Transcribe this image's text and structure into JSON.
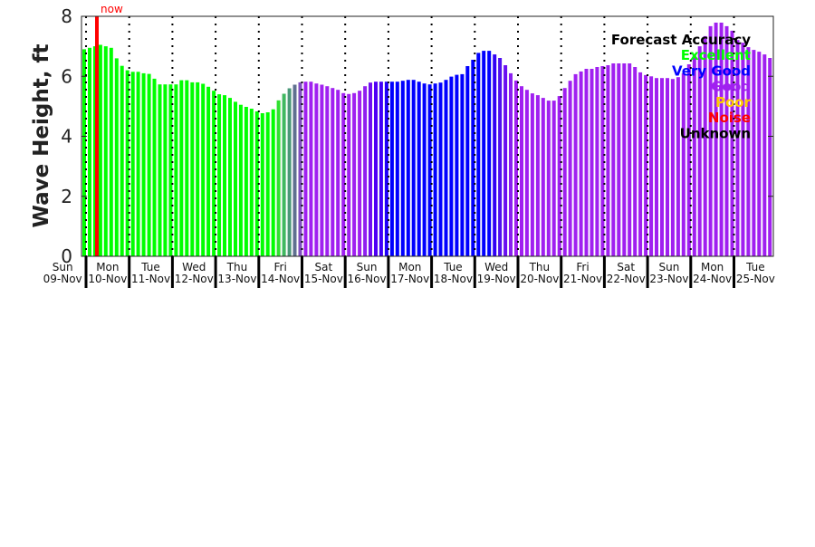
{
  "chart_data": {
    "type": "bar",
    "title": "",
    "ylabel": "Wave Height, ft",
    "xlabel": "",
    "ylim": [
      0,
      8
    ],
    "yticks": [
      0,
      2,
      4,
      6,
      8
    ],
    "interval_hours": 3,
    "now_label": "now",
    "now_color": "#ff0000",
    "days": [
      {
        "dow": "Sun",
        "date": "09-Nov"
      },
      {
        "dow": "Mon",
        "date": "10-Nov"
      },
      {
        "dow": "Tue",
        "date": "11-Nov"
      },
      {
        "dow": "Wed",
        "date": "12-Nov"
      },
      {
        "dow": "Thu",
        "date": "13-Nov"
      },
      {
        "dow": "Fri",
        "date": "14-Nov"
      },
      {
        "dow": "Sat",
        "date": "15-Nov"
      },
      {
        "dow": "Sun",
        "date": "16-Nov"
      },
      {
        "dow": "Mon",
        "date": "17-Nov"
      },
      {
        "dow": "Tue",
        "date": "18-Nov"
      },
      {
        "dow": "Wed",
        "date": "19-Nov"
      },
      {
        "dow": "Thu",
        "date": "20-Nov"
      },
      {
        "dow": "Fri",
        "date": "21-Nov"
      },
      {
        "dow": "Sat",
        "date": "22-Nov"
      },
      {
        "dow": "Sun",
        "date": "23-Nov"
      },
      {
        "dow": "Mon",
        "date": "24-Nov"
      },
      {
        "dow": "Tue",
        "date": "25-Nov"
      }
    ],
    "values": [
      6.9,
      6.95,
      7.0,
      7.05,
      7.0,
      6.95,
      6.6,
      6.35,
      6.2,
      6.15,
      6.15,
      6.1,
      6.08,
      5.92,
      5.73,
      5.73,
      5.73,
      5.73,
      5.87,
      5.87,
      5.8,
      5.8,
      5.75,
      5.65,
      5.52,
      5.4,
      5.37,
      5.28,
      5.15,
      5.05,
      4.98,
      4.92,
      4.83,
      4.77,
      4.8,
      4.9,
      5.2,
      5.42,
      5.6,
      5.72,
      5.8,
      5.82,
      5.82,
      5.76,
      5.72,
      5.67,
      5.61,
      5.55,
      5.44,
      5.41,
      5.44,
      5.52,
      5.67,
      5.79,
      5.82,
      5.82,
      5.82,
      5.82,
      5.82,
      5.85,
      5.88,
      5.88,
      5.82,
      5.76,
      5.73,
      5.76,
      5.79,
      5.88,
      5.99,
      6.05,
      6.07,
      6.34,
      6.55,
      6.78,
      6.85,
      6.85,
      6.73,
      6.61,
      6.37,
      6.1,
      5.86,
      5.67,
      5.55,
      5.43,
      5.37,
      5.28,
      5.19,
      5.19,
      5.34,
      5.61,
      5.85,
      6.07,
      6.16,
      6.25,
      6.25,
      6.31,
      6.34,
      6.37,
      6.43,
      6.43,
      6.43,
      6.43,
      6.31,
      6.13,
      6.04,
      6.0,
      5.94,
      5.94,
      5.94,
      5.91,
      5.97,
      6.1,
      6.4,
      6.73,
      7.0,
      7.34,
      7.67,
      7.79,
      7.79,
      7.67,
      7.52,
      7.21,
      7.12,
      6.97,
      6.88,
      6.82,
      6.73,
      6.61
    ],
    "color_overrides": {
      "36": "#30e030",
      "37": "#40b860",
      "38": "#4a9878",
      "39": "#607090",
      "40": "#8050c0",
      "52": "#9020f0",
      "53": "#7010f0",
      "54": "#5000f5",
      "55": "#4000f8",
      "56": "#2000fa",
      "76": "#3000f5",
      "77": "#5010f0",
      "78": "#6a10f0",
      "79": "#8a20f0"
    },
    "color_ranges": [
      {
        "from": 0,
        "to": 35,
        "color": "#00ff00"
      },
      {
        "from": 41,
        "to": 51,
        "color": "#a020f0"
      },
      {
        "from": 57,
        "to": 75,
        "color": "#0000ff"
      },
      {
        "from": 80,
        "to": 127,
        "color": "#a020f0"
      }
    ],
    "legend": {
      "title": "Forecast Accuracy",
      "placement": "top-right",
      "entries": [
        {
          "label": "Excellent",
          "color": "#00ff00"
        },
        {
          "label": "Very Good",
          "color": "#0000ff"
        },
        {
          "label": "Good",
          "color": "#a020f0"
        },
        {
          "label": "Poor",
          "color": "#ffcc00"
        },
        {
          "label": "Noise",
          "color": "#ff0000"
        },
        {
          "label": "Unknown",
          "color": "#000000"
        }
      ]
    }
  }
}
